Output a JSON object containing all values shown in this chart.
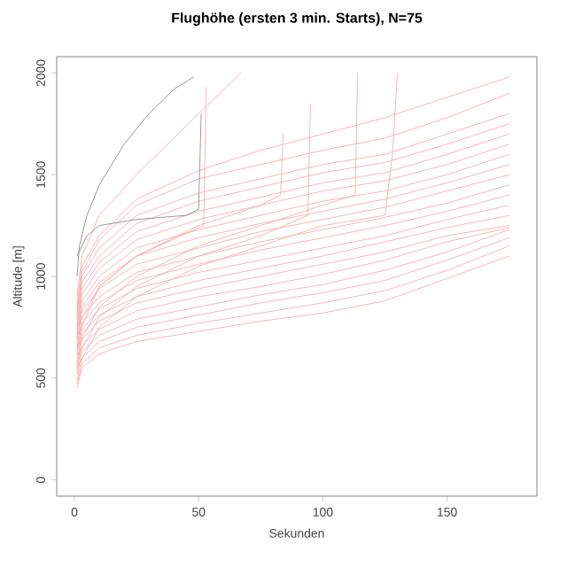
{
  "chart_data": {
    "type": "line",
    "title": "Flughöhe (ersten 3 min. Starts), N=75",
    "xlabel": "Sekunden",
    "ylabel": "Altitude [m]",
    "xlim": [
      -7.16,
      186.16
    ],
    "ylim": [
      -80,
      2080
    ],
    "xticks": [
      0,
      50,
      100,
      150
    ],
    "yticks": [
      0,
      500,
      1000,
      1500,
      2000
    ],
    "grid": false,
    "x": [
      1,
      3,
      10,
      25,
      50,
      75,
      100,
      125,
      150,
      175
    ],
    "series": [
      {
        "color": "#f5a3a3",
        "values": [
          450,
          550,
          620,
          680,
          730,
          780,
          820,
          880,
          990,
          1100
        ]
      },
      {
        "color": "#f5a3a3",
        "values": [
          470,
          570,
          650,
          710,
          770,
          820,
          870,
          930,
          1030,
          1150
        ]
      },
      {
        "color": "#f5a3a3",
        "values": [
          490,
          600,
          680,
          750,
          810,
          870,
          920,
          980,
          1080,
          1190
        ]
      },
      {
        "color": "#f5a3a3",
        "values": [
          520,
          630,
          710,
          790,
          850,
          910,
          960,
          1030,
          1120,
          1230
        ]
      },
      {
        "color": "#f5a3a3",
        "values": [
          540,
          660,
          740,
          830,
          900,
          950,
          1010,
          1080,
          1170,
          1240
        ]
      },
      {
        "color": "#f5a3a3",
        "values": [
          560,
          690,
          780,
          870,
          940,
          1000,
          1060,
          1120,
          1200,
          1250
        ]
      },
      {
        "color": "#f5a3a3",
        "values": [
          580,
          720,
          810,
          900,
          980,
          1040,
          1100,
          1170,
          1240,
          1300
        ]
      },
      {
        "color": "#f5a3a3",
        "values": [
          610,
          740,
          840,
          940,
          1020,
          1080,
          1140,
          1200,
          1280,
          1350
        ]
      },
      {
        "color": "#f5a3a3",
        "values": [
          630,
          770,
          870,
          980,
          1060,
          1130,
          1190,
          1250,
          1320,
          1400
        ]
      },
      {
        "color": "#f5a3a3",
        "values": [
          650,
          800,
          900,
          1020,
          1100,
          1170,
          1230,
          1290,
          1360,
          1450
        ]
      },
      {
        "color": "#f5a3a3",
        "values": [
          680,
          830,
          940,
          1060,
          1140,
          1220,
          1280,
          1340,
          1420,
          1500
        ]
      },
      {
        "color": "#f5a3a3",
        "values": [
          700,
          850,
          970,
          1100,
          1190,
          1260,
          1320,
          1380,
          1460,
          1550
        ]
      },
      {
        "color": "#f5a3a3",
        "values": [
          720,
          880,
          1000,
          1140,
          1230,
          1300,
          1370,
          1420,
          1500,
          1600
        ]
      },
      {
        "color": "#f5a3a3",
        "values": [
          740,
          910,
          1040,
          1180,
          1280,
          1350,
          1420,
          1470,
          1550,
          1650
        ]
      },
      {
        "color": "#f5a3a3",
        "values": [
          760,
          940,
          1070,
          1220,
          1320,
          1390,
          1460,
          1510,
          1600,
          1700
        ]
      },
      {
        "color": "#f5a3a3",
        "values": [
          790,
          970,
          1100,
          1260,
          1370,
          1440,
          1510,
          1560,
          1650,
          1750
        ]
      },
      {
        "color": "#f5a3a3",
        "values": [
          810,
          1000,
          1140,
          1300,
          1410,
          1480,
          1550,
          1600,
          1700,
          1800
        ]
      },
      {
        "color": "#f5a3a3",
        "values": [
          830,
          1020,
          1180,
          1350,
          1480,
          1550,
          1620,
          1680,
          1780,
          1900
        ]
      },
      {
        "color": "#f5a3a3",
        "values": [
          860,
          1050,
          1200,
          1380,
          1520,
          1620,
          1700,
          1780,
          1880,
          1980
        ]
      },
      {
        "color": "#f5a3a3",
        "x": [
          1,
          3,
          10,
          25,
          50,
          67
        ],
        "values": [
          900,
          1100,
          1300,
          1500,
          1800,
          2000
        ]
      },
      {
        "color": "#f5a3a3",
        "x": [
          1,
          10,
          25,
          52,
          53
        ],
        "values": [
          700,
          950,
          1100,
          1250,
          1930
        ]
      },
      {
        "color": "#f5a3a3",
        "x": [
          1,
          10,
          25,
          50,
          75,
          94,
          95
        ],
        "values": [
          600,
          800,
          950,
          1100,
          1200,
          1300,
          1850
        ]
      },
      {
        "color": "#f5a3a3",
        "x": [
          1,
          10,
          25,
          50,
          75,
          100,
          113,
          114
        ],
        "values": [
          650,
          850,
          1000,
          1150,
          1250,
          1350,
          1400,
          2000
        ]
      },
      {
        "color": "#f5a3a3",
        "x": [
          1,
          10,
          25,
          50,
          75,
          100,
          125,
          128,
          130
        ],
        "values": [
          550,
          750,
          900,
          1050,
          1150,
          1250,
          1300,
          1600,
          2000
        ]
      },
      {
        "color": "#f5a3a3",
        "x": [
          1,
          10,
          25,
          50,
          75,
          83,
          84
        ],
        "values": [
          750,
          950,
          1100,
          1250,
          1350,
          1400,
          1700
        ]
      },
      {
        "color": "#808080",
        "x": [
          1,
          2,
          5,
          10,
          20,
          30,
          40,
          48
        ],
        "values": [
          1000,
          1150,
          1300,
          1450,
          1650,
          1800,
          1920,
          1980
        ]
      },
      {
        "color": "#808080",
        "x": [
          1,
          5,
          10,
          25,
          45,
          50,
          51
        ],
        "values": [
          1100,
          1200,
          1250,
          1280,
          1300,
          1330,
          1800
        ]
      }
    ]
  }
}
